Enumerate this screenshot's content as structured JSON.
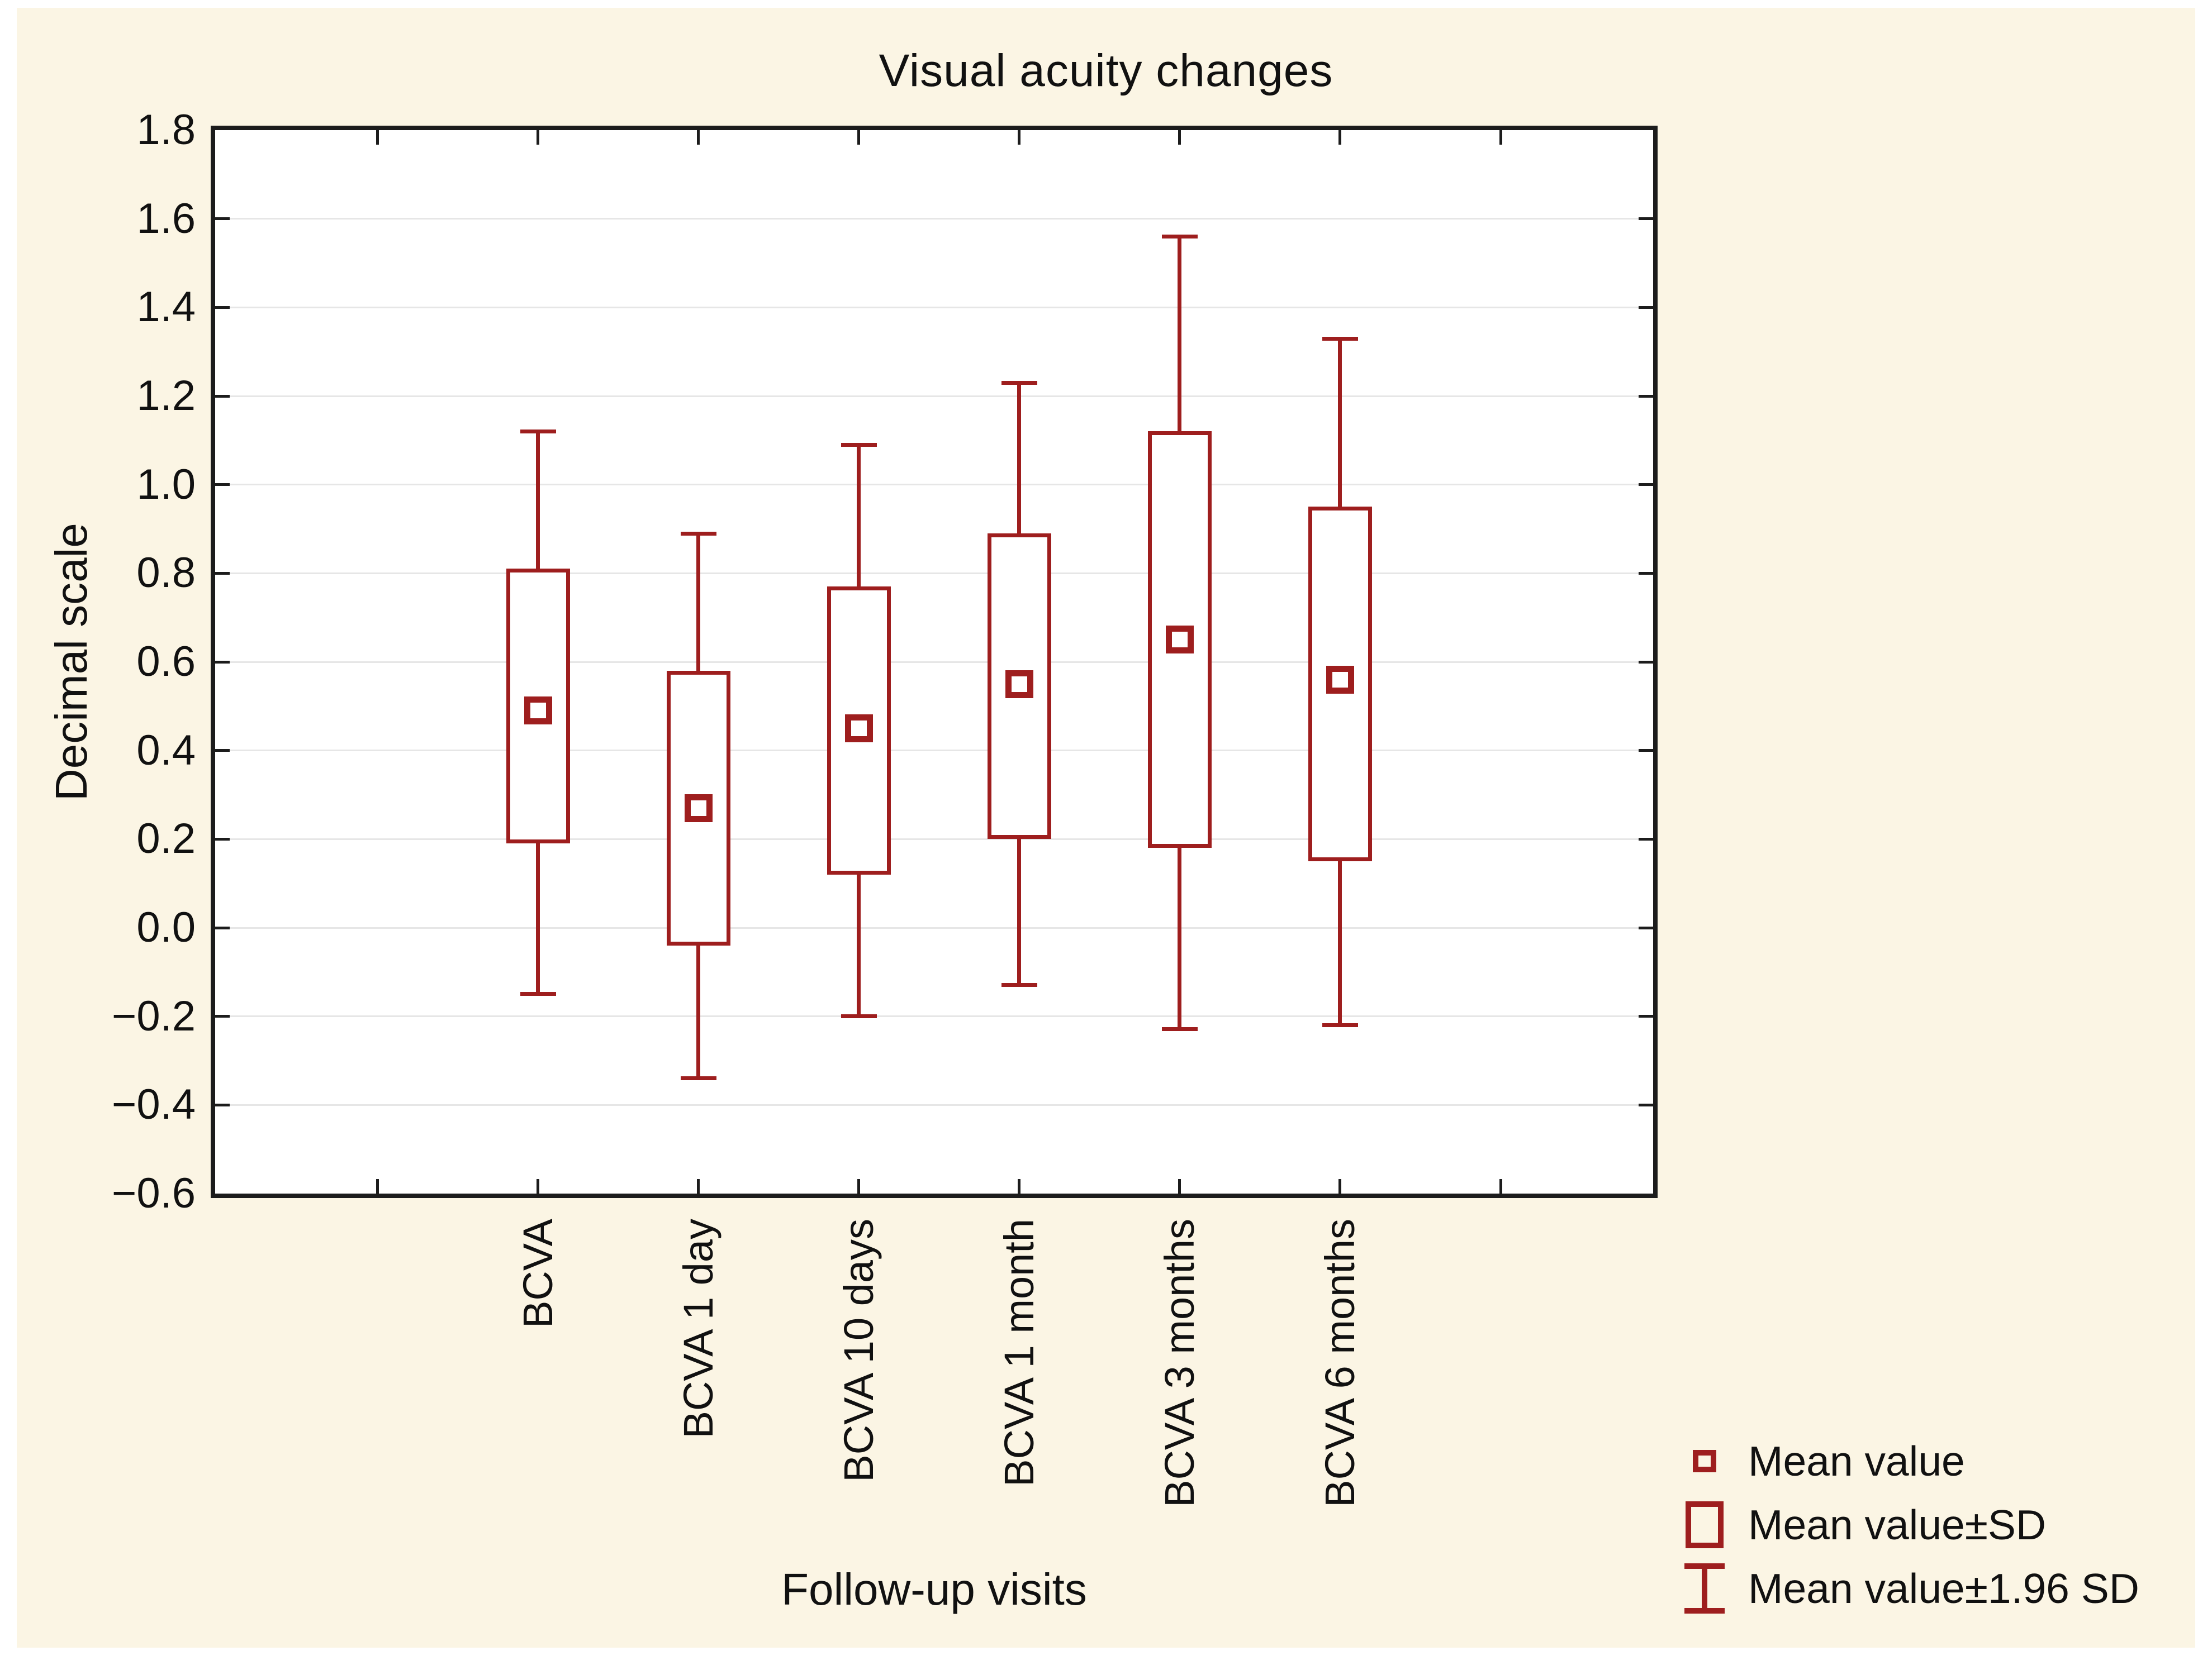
{
  "figure": {
    "background_color": "#FBF5E4",
    "plot_background": "#FFFFFF",
    "series_color": "#9E1E1E",
    "axis_color": "#1C1C1C",
    "gridline_color": "#E6E6E6"
  },
  "chart_data": {
    "type": "box",
    "title": "Visual acuity changes",
    "xlabel": "Follow-up visits",
    "ylabel": "Decimal scale",
    "ylim": [
      -0.6,
      1.8
    ],
    "ytick_step": 0.2,
    "ytick_values": [
      1.8,
      1.6,
      1.4,
      1.2,
      1.0,
      0.8,
      0.6,
      0.4,
      0.2,
      0.0,
      -0.2,
      -0.4,
      -0.6
    ],
    "ytick_labels": [
      "1.8",
      "1.6",
      "1.4",
      "1.2",
      "1.0",
      "0.8",
      "0.6",
      "0.4",
      "0.2",
      "0.0",
      "−0.2",
      "−0.4",
      "−0.6"
    ],
    "grid": "horizontal",
    "legend_position": "bottom-right",
    "categories": [
      "BCVA",
      "BCVA 1 day",
      "BCVA 10 days",
      "BCVA 1 month",
      "BCVA 3 months",
      "BCVA 6 months"
    ],
    "series": [
      {
        "name": "BCVA",
        "mean": 0.49,
        "sd_low": 0.19,
        "sd_high": 0.81,
        "sd196_low": -0.15,
        "sd196_high": 1.12
      },
      {
        "name": "BCVA 1 day",
        "mean": 0.27,
        "sd_low": -0.04,
        "sd_high": 0.58,
        "sd196_low": -0.34,
        "sd196_high": 0.89
      },
      {
        "name": "BCVA 10 days",
        "mean": 0.45,
        "sd_low": 0.12,
        "sd_high": 0.77,
        "sd196_low": -0.2,
        "sd196_high": 1.09
      },
      {
        "name": "BCVA 1 month",
        "mean": 0.55,
        "sd_low": 0.2,
        "sd_high": 0.89,
        "sd196_low": -0.13,
        "sd196_high": 1.23
      },
      {
        "name": "BCVA 3 months",
        "mean": 0.65,
        "sd_low": 0.18,
        "sd_high": 1.12,
        "sd196_low": -0.23,
        "sd196_high": 1.56
      },
      {
        "name": "BCVA 6 months",
        "mean": 0.56,
        "sd_low": 0.15,
        "sd_high": 0.95,
        "sd196_low": -0.22,
        "sd196_high": 1.33
      }
    ],
    "legend": [
      {
        "icon": "mean-square-icon",
        "label": "Mean value"
      },
      {
        "icon": "sd-rectangle-icon",
        "label": "Mean value±SD"
      },
      {
        "icon": "whisker-ibeam-icon",
        "label": "Mean value±1.96 SD"
      }
    ]
  }
}
